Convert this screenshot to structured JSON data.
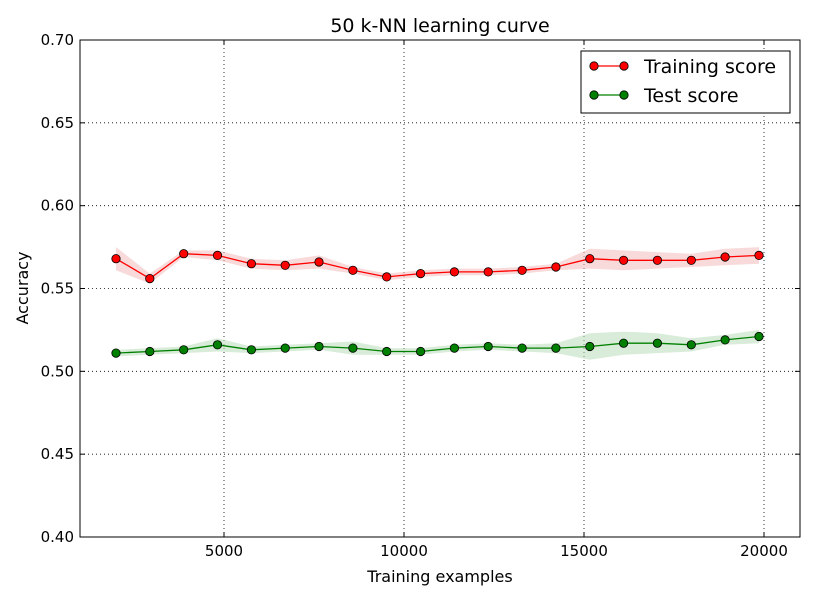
{
  "chart_data": {
    "type": "line",
    "title": "50 k-NN learning curve",
    "xlabel": "Training examples",
    "ylabel": "Accuracy",
    "xlim": [
      1000,
      21000
    ],
    "ylim": [
      0.4,
      0.7
    ],
    "xticks": [
      5000,
      10000,
      15000,
      20000
    ],
    "xtick_labels": [
      "5000",
      "10000",
      "15000",
      "20000"
    ],
    "yticks": [
      0.4,
      0.45,
      0.5,
      0.55,
      0.6,
      0.65,
      0.7
    ],
    "ytick_labels": [
      "0.40",
      "0.45",
      "0.50",
      "0.55",
      "0.60",
      "0.65",
      "0.70"
    ],
    "grid": true,
    "legend_position": "top-right",
    "x": [
      2000,
      2940,
      3880,
      4820,
      5760,
      6700,
      7640,
      8580,
      9520,
      10460,
      11400,
      12340,
      13280,
      14220,
      15160,
      16100,
      17040,
      17980,
      18920,
      19860
    ],
    "series": [
      {
        "name": "Training score",
        "color": "#ff0000",
        "fill": "#f4bcbc",
        "values": [
          0.568,
          0.556,
          0.571,
          0.57,
          0.565,
          0.564,
          0.566,
          0.561,
          0.557,
          0.559,
          0.56,
          0.56,
          0.561,
          0.563,
          0.568,
          0.567,
          0.567,
          0.567,
          0.569,
          0.57
        ],
        "band": [
          0.007,
          0.003,
          0.002,
          0.003,
          0.003,
          0.003,
          0.004,
          0.002,
          0.002,
          0.002,
          0.002,
          0.002,
          0.002,
          0.002,
          0.006,
          0.006,
          0.005,
          0.004,
          0.005,
          0.005
        ]
      },
      {
        "name": "Test score",
        "color": "#008000",
        "fill": "#b9dcb9",
        "values": [
          0.511,
          0.512,
          0.513,
          0.516,
          0.513,
          0.514,
          0.515,
          0.514,
          0.512,
          0.512,
          0.514,
          0.515,
          0.514,
          0.514,
          0.515,
          0.517,
          0.517,
          0.516,
          0.519,
          0.521
        ],
        "band": [
          0.002,
          0.002,
          0.002,
          0.004,
          0.002,
          0.002,
          0.002,
          0.004,
          0.002,
          0.002,
          0.002,
          0.002,
          0.002,
          0.003,
          0.008,
          0.007,
          0.006,
          0.004,
          0.003,
          0.004
        ]
      }
    ]
  }
}
